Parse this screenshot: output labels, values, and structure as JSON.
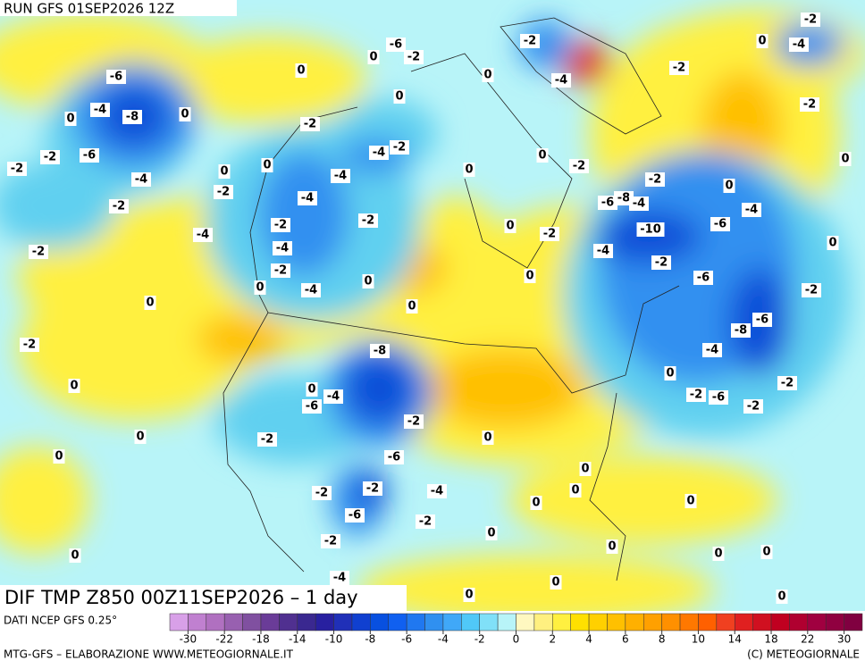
{
  "header": {
    "run": "RUN GFS 01SEP2026 12Z"
  },
  "map": {
    "title": "DIF TMP Z850 00Z11SEP2026 – 1 day",
    "contour_labels": [
      "-6",
      "-2",
      "0",
      "0",
      "-6",
      "-4",
      "-8",
      "0",
      "0",
      "0",
      "-2",
      "-4",
      "-2",
      "-2",
      "-2",
      "-6",
      "-4",
      "0",
      "0",
      "-4",
      "-2",
      "-2",
      "-4",
      "-2",
      "-2",
      "-4",
      "-2",
      "-4",
      "-2",
      "-4",
      "0",
      "0",
      "0",
      "0",
      "-2",
      "0",
      "-8",
      "0",
      "-4",
      "-6",
      "-2",
      "-2",
      "0",
      "0",
      "0",
      "-6",
      "-2",
      "-2",
      "-4",
      "-6",
      "-2",
      "0",
      "-2",
      "-4",
      "0",
      "0",
      "0",
      "0",
      "0",
      "0",
      "0",
      "0",
      "0",
      "0",
      "0",
      "0",
      "-2",
      "-6",
      "-2",
      "-2",
      "-4",
      "-8",
      "-6",
      "-2",
      "0",
      "-4",
      "-6",
      "0",
      "-2",
      "-6",
      "-8",
      "-4",
      "-10",
      "-4",
      "-2",
      "-6",
      "-2",
      "0",
      "0",
      "0",
      "-2",
      "0",
      "-2",
      "-4",
      "0",
      "-2",
      "0",
      "-2",
      "-4",
      "-2",
      "0"
    ]
  },
  "legend": {
    "source": "DATI NCEP GFS 0.25°",
    "ticks": [
      -30,
      -22,
      -18,
      -14,
      -10,
      -8,
      -6,
      -4,
      -2,
      0,
      2,
      4,
      6,
      8,
      10,
      14,
      18,
      22,
      30
    ],
    "colors": [
      "#d8a0e8",
      "#c080d0",
      "#b070c0",
      "#9860b0",
      "#8050a0",
      "#6a3c98",
      "#503090",
      "#3a2890",
      "#2820a0",
      "#2030b8",
      "#1040d0",
      "#0850e0",
      "#1060f0",
      "#2078f0",
      "#3090f0",
      "#40a8f8",
      "#50c8f8",
      "#80e0f8",
      "#b8f4f8",
      "#fff8c0",
      "#fff080",
      "#fff040",
      "#ffe000",
      "#ffd000",
      "#ffc000",
      "#ffb000",
      "#ffa000",
      "#ff9000",
      "#ff7800",
      "#ff6000",
      "#f04020",
      "#e02020",
      "#d01020",
      "#c00020",
      "#b00030",
      "#a00040",
      "#900040",
      "#800040"
    ]
  },
  "footer": {
    "left": "MTG-GFS – ELABORAZIONE WWW.METEOGIORNALE.IT",
    "right": "(C) METEOGIORNALE"
  }
}
